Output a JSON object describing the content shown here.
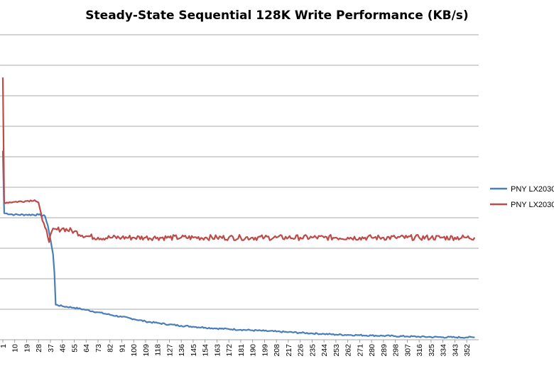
{
  "chart_data": {
    "type": "line",
    "title": "Steady-State Sequential 128K Write Performance (KB/s)",
    "xlabel": "",
    "ylabel": "",
    "x_tick_labels": [
      "1",
      "10",
      "19",
      "28",
      "37",
      "46",
      "55",
      "64",
      "73",
      "82",
      "91",
      "100",
      "109",
      "118",
      "127",
      "136",
      "145",
      "154",
      "163",
      "172",
      "181",
      "190",
      "199",
      "208",
      "217",
      "226",
      "235",
      "244",
      "253",
      "262",
      "271",
      "280",
      "289",
      "298",
      "307",
      "316",
      "325",
      "334",
      "343",
      "352"
    ],
    "x_range": [
      1,
      360
    ],
    "y_range": [
      0,
      10
    ],
    "grid": true,
    "legend_position": "right",
    "series": [
      {
        "name": "PNY LX2030",
        "color": "#4a7ebb",
        "points": [
          [
            1,
            6.2
          ],
          [
            2,
            4.15
          ],
          [
            10,
            4.1
          ],
          [
            19,
            4.1
          ],
          [
            28,
            4.1
          ],
          [
            33,
            4.05
          ],
          [
            35,
            3.75
          ],
          [
            37,
            3.3
          ],
          [
            39,
            2.8
          ],
          [
            40,
            2.2
          ],
          [
            41,
            1.15
          ],
          [
            46,
            1.1
          ],
          [
            55,
            1.05
          ],
          [
            64,
            0.98
          ],
          [
            73,
            0.9
          ],
          [
            82,
            0.82
          ],
          [
            91,
            0.75
          ],
          [
            100,
            0.68
          ],
          [
            109,
            0.6
          ],
          [
            118,
            0.55
          ],
          [
            127,
            0.5
          ],
          [
            136,
            0.46
          ],
          [
            145,
            0.43
          ],
          [
            154,
            0.4
          ],
          [
            163,
            0.37
          ],
          [
            172,
            0.35
          ],
          [
            181,
            0.33
          ],
          [
            190,
            0.31
          ],
          [
            199,
            0.29
          ],
          [
            208,
            0.27
          ],
          [
            217,
            0.25
          ],
          [
            226,
            0.23
          ],
          [
            235,
            0.21
          ],
          [
            244,
            0.19
          ],
          [
            253,
            0.17
          ],
          [
            262,
            0.16
          ],
          [
            271,
            0.15
          ],
          [
            280,
            0.14
          ],
          [
            289,
            0.13
          ],
          [
            298,
            0.12
          ],
          [
            307,
            0.11
          ],
          [
            316,
            0.1
          ],
          [
            325,
            0.09
          ],
          [
            334,
            0.085
          ],
          [
            343,
            0.08
          ],
          [
            352,
            0.08
          ],
          [
            358,
            0.08
          ]
        ]
      },
      {
        "name": "PNY LX2030",
        "color": "#be4b48",
        "points": [
          [
            1,
            8.6
          ],
          [
            2,
            4.5
          ],
          [
            10,
            4.52
          ],
          [
            19,
            4.55
          ],
          [
            25,
            4.58
          ],
          [
            28,
            4.5
          ],
          [
            31,
            3.9
          ],
          [
            34,
            3.6
          ],
          [
            36,
            3.2
          ],
          [
            38,
            3.55
          ],
          [
            46,
            3.65
          ],
          [
            55,
            3.55
          ],
          [
            64,
            3.4
          ],
          [
            73,
            3.35
          ],
          [
            82,
            3.35
          ],
          [
            91,
            3.35
          ],
          [
            100,
            3.35
          ],
          [
            109,
            3.35
          ],
          [
            118,
            3.35
          ],
          [
            127,
            3.35
          ],
          [
            136,
            3.35
          ],
          [
            145,
            3.35
          ],
          [
            154,
            3.35
          ],
          [
            163,
            3.35
          ],
          [
            172,
            3.35
          ],
          [
            181,
            3.35
          ],
          [
            190,
            3.35
          ],
          [
            199,
            3.35
          ],
          [
            208,
            3.35
          ],
          [
            217,
            3.35
          ],
          [
            226,
            3.35
          ],
          [
            235,
            3.35
          ],
          [
            244,
            3.35
          ],
          [
            253,
            3.35
          ],
          [
            262,
            3.35
          ],
          [
            271,
            3.35
          ],
          [
            280,
            3.35
          ],
          [
            289,
            3.35
          ],
          [
            298,
            3.35
          ],
          [
            307,
            3.35
          ],
          [
            316,
            3.35
          ],
          [
            325,
            3.35
          ],
          [
            334,
            3.35
          ],
          [
            343,
            3.35
          ],
          [
            352,
            3.35
          ],
          [
            358,
            3.35
          ]
        ]
      }
    ]
  }
}
